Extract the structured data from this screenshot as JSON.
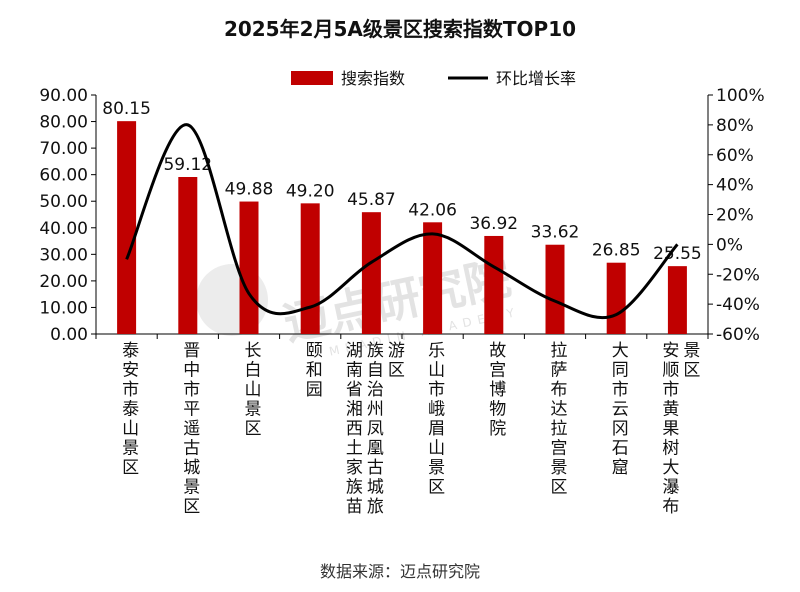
{
  "chart_data": {
    "type": "bar",
    "title": "2025年2月5A级景区搜索指数TOP10",
    "categories": [
      "泰安市泰山景区",
      "晋中市平遥古城景区",
      "长白山景区",
      "颐和园",
      "湖南省湘西土家族苗族自治州凤凰古城旅游区",
      "乐山市峨眉山景区",
      "故宫博物院",
      "拉萨布达拉宫景区",
      "大同市云冈石窟",
      "安顺市黄果树大瀑布景区"
    ],
    "series": [
      {
        "name": "搜索指数",
        "type": "bar",
        "axis": "left",
        "color": "#c00000",
        "values": [
          80.15,
          59.12,
          49.88,
          49.2,
          45.87,
          42.06,
          36.92,
          33.62,
          26.85,
          25.55
        ],
        "labels": [
          "80.15",
          "59.12",
          "49.88",
          "49.20",
          "45.87",
          "42.06",
          "36.92",
          "33.62",
          "26.85",
          "25.55"
        ]
      },
      {
        "name": "环比增长率",
        "type": "line",
        "axis": "right",
        "color": "#000000",
        "values": [
          -10,
          80,
          -33,
          -42,
          -12,
          7,
          -15,
          -38,
          -47,
          0
        ]
      }
    ],
    "ylim_left": [
      0,
      90
    ],
    "yticks_left": [
      "0.00",
      "10.00",
      "20.00",
      "30.00",
      "40.00",
      "50.00",
      "60.00",
      "70.00",
      "80.00",
      "90.00"
    ],
    "ylim_right": [
      -60,
      100
    ],
    "yticks_right": [
      "-60%",
      "-40%",
      "-20%",
      "0%",
      "20%",
      "40%",
      "60%",
      "80%",
      "100%"
    ],
    "legend_position": "top-center",
    "grid": false
  },
  "source": "数据来源：迈点研究院",
  "watermark": {
    "text": "迈点研究院",
    "subtext": "MEADIN ACADEMY"
  }
}
